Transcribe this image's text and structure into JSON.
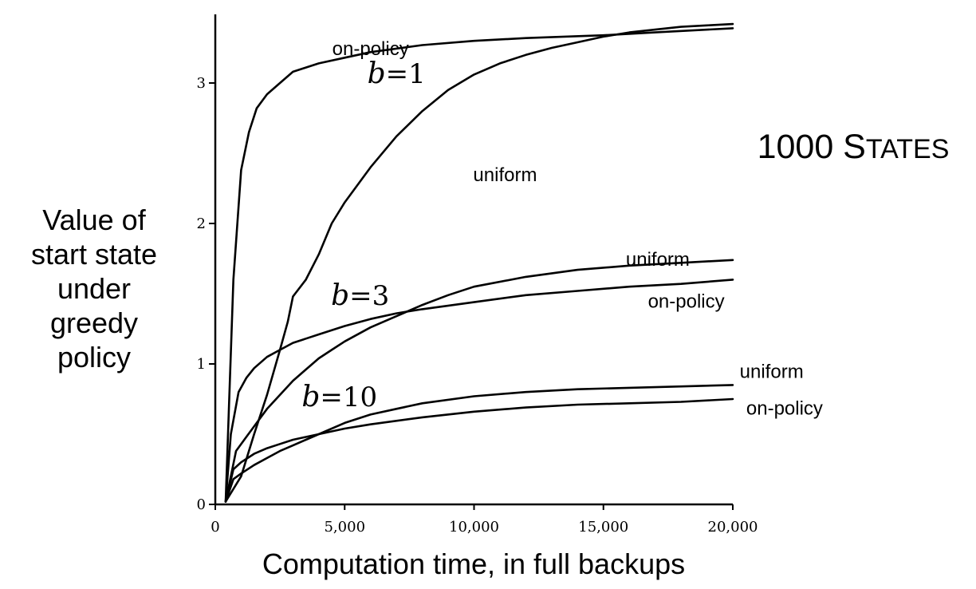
{
  "side_title": {
    "prefix": "1000 S",
    "suffix": "TATES"
  },
  "chart_data": {
    "type": "line",
    "title": "1000 STATES",
    "xlabel": "Computation time, in full backups",
    "ylabel": [
      "Value of",
      "start state",
      "under",
      "greedy",
      "policy"
    ],
    "xlim": [
      0,
      20000
    ],
    "ylim": [
      0,
      3.5
    ],
    "x_ticks": [
      0,
      5000,
      10000,
      15000,
      20000
    ],
    "x_tick_labels": [
      "0",
      "5,000",
      "10,000",
      "15,000",
      "20,000"
    ],
    "y_ticks": [
      0,
      1,
      2,
      3
    ],
    "y_tick_labels": [
      "0",
      "1",
      "2",
      "3"
    ],
    "grid": false,
    "branch_labels": [
      {
        "prefix": "b",
        "text": "=1",
        "x": 7000,
        "y": 3.0
      },
      {
        "prefix": "b",
        "text": "=3",
        "x": 5600,
        "y": 1.42
      },
      {
        "prefix": "b",
        "text": "=10",
        "x": 4800,
        "y": 0.7
      }
    ],
    "curve_labels": [
      {
        "text": "on-policy",
        "x": 6000,
        "y": 3.2
      },
      {
        "text": "uniform",
        "x": 11200,
        "y": 2.3
      },
      {
        "text": "uniform",
        "x": 17100,
        "y": 1.7
      },
      {
        "text": "on-policy",
        "x": 18200,
        "y": 1.4
      },
      {
        "text": "uniform",
        "x": 21500,
        "y": 0.9
      },
      {
        "text": "on-policy",
        "x": 22000,
        "y": 0.64
      }
    ],
    "series": [
      {
        "branching": "b=1",
        "sampling": "on-policy",
        "x": [
          400,
          700,
          1000,
          1300,
          1600,
          2000,
          2500,
          3000,
          3500,
          4000,
          5000,
          6000,
          8000,
          10000,
          12000,
          15000,
          17000,
          20000
        ],
        "y": [
          0.02,
          1.6,
          2.38,
          2.65,
          2.82,
          2.92,
          3.0,
          3.08,
          3.11,
          3.14,
          3.18,
          3.22,
          3.27,
          3.3,
          3.32,
          3.34,
          3.36,
          3.39
        ]
      },
      {
        "branch_index": 0,
        "branching": "b=1",
        "sampling": "uniform",
        "x": [
          400,
          1000,
          1500,
          2000,
          2500,
          2800,
          3000,
          3500,
          4000,
          4500,
          5000,
          6000,
          7000,
          8000,
          9000,
          10000,
          11000,
          12000,
          13000,
          14000,
          15000,
          16000,
          17000,
          18000,
          19000,
          20000
        ],
        "y": [
          0.02,
          0.2,
          0.5,
          0.78,
          1.1,
          1.3,
          1.48,
          1.6,
          1.78,
          2.0,
          2.15,
          2.4,
          2.62,
          2.8,
          2.95,
          3.06,
          3.14,
          3.2,
          3.25,
          3.29,
          3.33,
          3.36,
          3.38,
          3.4,
          3.41,
          3.42
        ]
      },
      {
        "branching": "b=3",
        "sampling": "on-policy",
        "x": [
          400,
          600,
          900,
          1200,
          1500,
          2000,
          2500,
          3000,
          3500,
          4000,
          5000,
          6000,
          7000,
          8000,
          10000,
          12000,
          14000,
          16000,
          18000,
          20000
        ],
        "y": [
          0.02,
          0.5,
          0.8,
          0.9,
          0.97,
          1.05,
          1.1,
          1.15,
          1.18,
          1.21,
          1.27,
          1.32,
          1.36,
          1.39,
          1.44,
          1.49,
          1.52,
          1.55,
          1.57,
          1.6
        ]
      },
      {
        "branching": "b=3",
        "sampling": "uniform",
        "x": [
          400,
          800,
          1200,
          1600,
          2000,
          2500,
          3000,
          3500,
          4000,
          4500,
          5000,
          6000,
          7000,
          8000,
          9000,
          10000,
          12000,
          14000,
          16000,
          18000,
          20000
        ],
        "y": [
          0.02,
          0.38,
          0.48,
          0.58,
          0.68,
          0.78,
          0.88,
          0.96,
          1.04,
          1.1,
          1.16,
          1.26,
          1.34,
          1.42,
          1.49,
          1.55,
          1.62,
          1.67,
          1.7,
          1.72,
          1.74
        ]
      },
      {
        "branching": "b=10",
        "sampling": "on-policy",
        "x": [
          400,
          700,
          1000,
          1500,
          2000,
          2500,
          3000,
          4000,
          5000,
          6000,
          8000,
          10000,
          12000,
          14000,
          16000,
          18000,
          20000
        ],
        "y": [
          0.02,
          0.25,
          0.3,
          0.36,
          0.4,
          0.43,
          0.46,
          0.5,
          0.54,
          0.57,
          0.62,
          0.66,
          0.69,
          0.71,
          0.72,
          0.73,
          0.75
        ]
      },
      {
        "branching": "b=10",
        "sampling": "uniform",
        "x": [
          400,
          700,
          1000,
          1500,
          2000,
          2500,
          3000,
          3500,
          4000,
          5000,
          6000,
          7000,
          8000,
          10000,
          12000,
          14000,
          16000,
          18000,
          20000
        ],
        "y": [
          0.02,
          0.18,
          0.22,
          0.28,
          0.33,
          0.38,
          0.42,
          0.46,
          0.5,
          0.58,
          0.64,
          0.68,
          0.72,
          0.77,
          0.8,
          0.82,
          0.83,
          0.84,
          0.85
        ]
      }
    ]
  }
}
